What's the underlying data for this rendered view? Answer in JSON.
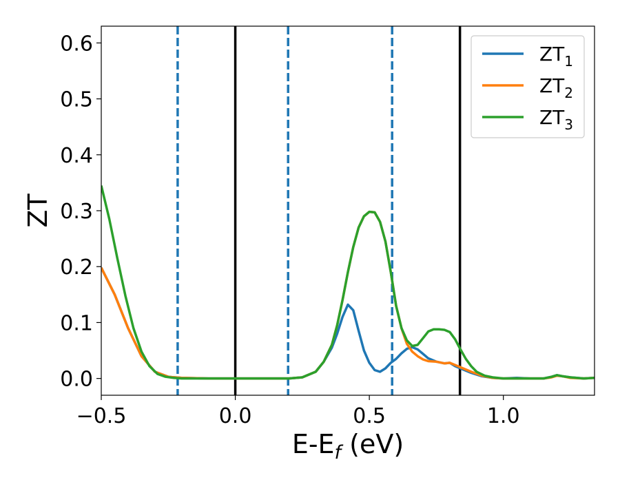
{
  "chart_data": {
    "type": "line",
    "xlabel": "E-E",
    "xlabel_sub": "f",
    "xlabel_unit": " (eV)",
    "ylabel": "ZT",
    "xlim": [
      -0.5,
      1.34
    ],
    "ylim": [
      -0.03,
      0.63
    ],
    "xticks": [
      -0.5,
      0.0,
      0.5,
      1.0
    ],
    "xtick_labels": [
      "−0.5",
      "0.0",
      "0.5",
      "1.0"
    ],
    "yticks": [
      0.0,
      0.1,
      0.2,
      0.3,
      0.4,
      0.5,
      0.6
    ],
    "ytick_labels": [
      "0.0",
      "0.1",
      "0.2",
      "0.3",
      "0.4",
      "0.5",
      "0.6"
    ],
    "grid": false,
    "legend_position": "top-right",
    "vlines": [
      {
        "x": -0.215,
        "style": "dashed",
        "color": "#1f77b4"
      },
      {
        "x": 0.0,
        "style": "solid",
        "color": "#000000"
      },
      {
        "x": 0.197,
        "style": "dashed",
        "color": "#1f77b4"
      },
      {
        "x": 0.585,
        "style": "dashed",
        "color": "#1f77b4"
      },
      {
        "x": 0.838,
        "style": "solid",
        "color": "#000000"
      }
    ],
    "series": [
      {
        "name": "ZT",
        "sub": "1",
        "color": "#1f77b4",
        "x": [
          -0.5,
          -0.45,
          -0.4,
          -0.35,
          -0.3,
          -0.25,
          -0.2,
          -0.1,
          0.0,
          0.1,
          0.2,
          0.25,
          0.3,
          0.33,
          0.36,
          0.38,
          0.4,
          0.42,
          0.44,
          0.46,
          0.48,
          0.5,
          0.52,
          0.54,
          0.56,
          0.58,
          0.6,
          0.62,
          0.64,
          0.66,
          0.68,
          0.7,
          0.72,
          0.75,
          0.78,
          0.8,
          0.82,
          0.85,
          0.88,
          0.92,
          0.96,
          1.0,
          1.05,
          1.1,
          1.15,
          1.18,
          1.2,
          1.22,
          1.25,
          1.3,
          1.34
        ],
        "y": [
          0.198,
          0.15,
          0.09,
          0.04,
          0.012,
          0.003,
          0.001,
          0.0,
          0.0,
          0.0,
          0.0,
          0.002,
          0.012,
          0.03,
          0.055,
          0.08,
          0.11,
          0.132,
          0.122,
          0.085,
          0.05,
          0.028,
          0.015,
          0.012,
          0.018,
          0.028,
          0.035,
          0.045,
          0.053,
          0.056,
          0.052,
          0.044,
          0.036,
          0.03,
          0.027,
          0.028,
          0.022,
          0.016,
          0.01,
          0.004,
          0.001,
          0.0,
          0.001,
          0.0,
          0.0,
          0.003,
          0.006,
          0.004,
          0.002,
          0.0,
          0.001
        ]
      },
      {
        "name": "ZT",
        "sub": "2",
        "color": "#ff7f0e",
        "x": [
          -0.5,
          -0.45,
          -0.4,
          -0.35,
          -0.3,
          -0.25,
          -0.2,
          -0.1,
          0.0,
          0.1,
          0.2,
          0.25,
          0.3,
          0.33,
          0.36,
          0.38,
          0.4,
          0.42,
          0.44,
          0.46,
          0.48,
          0.5,
          0.52,
          0.54,
          0.56,
          0.58,
          0.6,
          0.62,
          0.64,
          0.66,
          0.68,
          0.7,
          0.72,
          0.75,
          0.78,
          0.8,
          0.82,
          0.85,
          0.88,
          0.92,
          0.96,
          1.0,
          1.05,
          1.1,
          1.15,
          1.18,
          1.2,
          1.22,
          1.25,
          1.3,
          1.34
        ],
        "y": [
          0.198,
          0.15,
          0.09,
          0.04,
          0.012,
          0.003,
          0.001,
          0.0,
          0.0,
          0.0,
          0.0,
          0.002,
          0.012,
          0.03,
          0.06,
          0.095,
          0.14,
          0.19,
          0.235,
          0.27,
          0.29,
          0.298,
          0.297,
          0.28,
          0.245,
          0.19,
          0.13,
          0.09,
          0.062,
          0.048,
          0.04,
          0.034,
          0.031,
          0.03,
          0.027,
          0.028,
          0.024,
          0.018,
          0.012,
          0.005,
          0.001,
          0.0,
          0.0,
          0.0,
          0.0,
          0.002,
          0.005,
          0.004,
          0.001,
          0.0,
          0.001
        ]
      },
      {
        "name": "ZT",
        "sub": "3",
        "color": "#2ca02c",
        "x": [
          -0.5,
          -0.47,
          -0.44,
          -0.41,
          -0.38,
          -0.35,
          -0.32,
          -0.29,
          -0.26,
          -0.23,
          -0.2,
          -0.1,
          0.0,
          0.1,
          0.2,
          0.25,
          0.3,
          0.33,
          0.36,
          0.38,
          0.4,
          0.42,
          0.44,
          0.46,
          0.48,
          0.5,
          0.52,
          0.54,
          0.56,
          0.58,
          0.6,
          0.62,
          0.64,
          0.66,
          0.68,
          0.7,
          0.72,
          0.74,
          0.76,
          0.78,
          0.8,
          0.82,
          0.84,
          0.86,
          0.88,
          0.9,
          0.93,
          0.96,
          1.0,
          1.05,
          1.1,
          1.15,
          1.18,
          1.2,
          1.22,
          1.25,
          1.3,
          1.34
        ],
        "y": [
          0.345,
          0.285,
          0.215,
          0.148,
          0.09,
          0.048,
          0.022,
          0.008,
          0.003,
          0.001,
          0.0,
          0.0,
          0.0,
          0.0,
          0.0,
          0.002,
          0.012,
          0.03,
          0.06,
          0.095,
          0.14,
          0.19,
          0.235,
          0.27,
          0.29,
          0.298,
          0.297,
          0.28,
          0.245,
          0.19,
          0.13,
          0.09,
          0.068,
          0.058,
          0.06,
          0.072,
          0.084,
          0.088,
          0.088,
          0.087,
          0.083,
          0.07,
          0.052,
          0.035,
          0.022,
          0.012,
          0.005,
          0.002,
          0.0,
          0.0,
          0.0,
          0.0,
          0.003,
          0.006,
          0.004,
          0.002,
          0.0,
          0.001
        ]
      }
    ]
  }
}
